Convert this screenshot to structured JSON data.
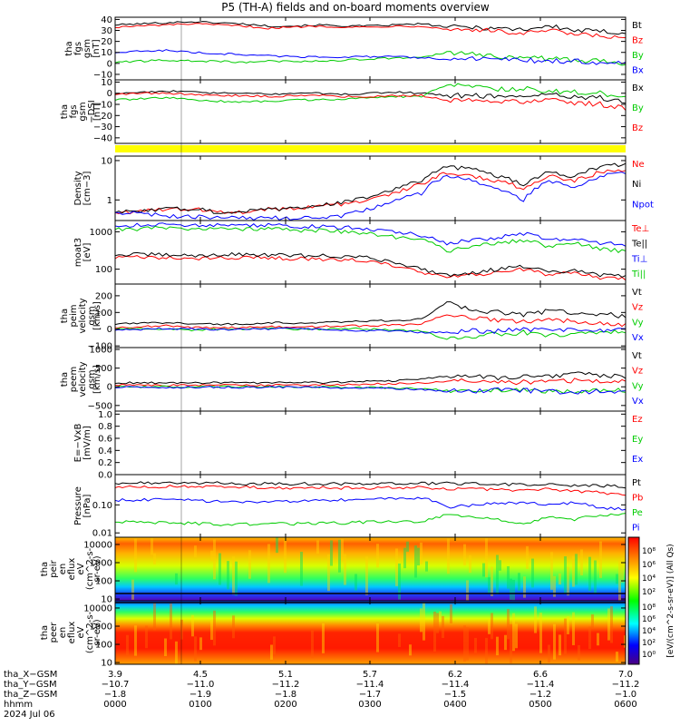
{
  "title": "P5 (TH-A) fields and on-board moments overview",
  "chart_data": [
    {
      "type": "line",
      "panel": "fgs_gsm",
      "ylabel": [
        "tha",
        "fgs",
        "gsm",
        "[nT]"
      ],
      "ylim": [
        -15,
        42
      ],
      "yticks": [
        "40",
        "30",
        "20",
        "10",
        "0",
        "−10"
      ],
      "ytick_values": [
        40,
        30,
        20,
        10,
        0,
        -10
      ],
      "series": [
        {
          "name": "Bt",
          "color": "#000000",
          "values": [
            35,
            36,
            37,
            38,
            37,
            36,
            34,
            34,
            35,
            34,
            34,
            35,
            36,
            33,
            33,
            32,
            31,
            34,
            30,
            29,
            28
          ]
        },
        {
          "name": "Bz",
          "color": "#ff0000",
          "values": [
            33,
            34,
            35,
            36,
            35,
            34,
            32,
            33,
            34,
            33,
            33,
            34,
            34,
            31,
            31,
            29,
            27,
            30,
            26,
            25,
            22
          ]
        },
        {
          "name": "By",
          "color": "#00cc00",
          "values": [
            1,
            2,
            3,
            2,
            2,
            1,
            2,
            2,
            2,
            3,
            4,
            5,
            5,
            10,
            8,
            6,
            6,
            4,
            3,
            2,
            0
          ]
        },
        {
          "name": "Bx",
          "color": "#0000ff",
          "values": [
            10,
            11,
            12,
            10,
            9,
            8,
            7,
            6,
            6,
            6,
            6,
            6,
            5,
            4,
            4,
            4,
            3,
            2,
            2,
            1,
            0
          ]
        }
      ]
    },
    {
      "type": "line",
      "panel": "fgs_gsm_detrended",
      "ylabel": [
        "tha",
        "fgs",
        "gsm",
        "−DSI",
        "[nT]"
      ],
      "ylim": [
        -45,
        12
      ],
      "yticks": [
        "10",
        "0",
        "−10",
        "−20",
        "−30",
        "−40"
      ],
      "ytick_values": [
        10,
        0,
        -10,
        -20,
        -30,
        -40
      ],
      "series": [
        {
          "name": "Bx",
          "color": "#000000",
          "values": [
            0,
            1,
            2,
            1,
            0,
            0,
            -1,
            0,
            0,
            -1,
            0,
            1,
            0,
            -2,
            -2,
            -3,
            -2,
            -1,
            -3,
            -4,
            -8
          ]
        },
        {
          "name": "By",
          "color": "#00cc00",
          "values": [
            -6,
            -5,
            -4,
            -6,
            -7,
            -8,
            -7,
            -6,
            -6,
            -5,
            -4,
            -3,
            -3,
            8,
            6,
            4,
            4,
            2,
            1,
            0,
            -4
          ]
        },
        {
          "name": "Bz",
          "color": "#ff0000",
          "values": [
            -1,
            0,
            0,
            -1,
            -2,
            -2,
            -3,
            -2,
            -2,
            -3,
            -3,
            -2,
            -2,
            -6,
            -6,
            -7,
            -8,
            -6,
            -9,
            -10,
            -14
          ]
        }
      ]
    },
    {
      "type": "line",
      "panel": "density",
      "scale": "log",
      "ylabel": [
        "Density",
        "[cm−3]"
      ],
      "ylim": [
        0.3,
        13
      ],
      "yticks": [
        "10",
        "1"
      ],
      "ytick_values": [
        10,
        1
      ],
      "series": [
        {
          "name": "Ne",
          "color": "#ff0000",
          "values": [
            0.5,
            0.5,
            0.6,
            0.6,
            0.5,
            0.5,
            0.6,
            0.6,
            0.7,
            0.8,
            1.0,
            1.5,
            2.5,
            5.0,
            4.0,
            3.0,
            2.0,
            4.0,
            3.0,
            5.0,
            6.0
          ]
        },
        {
          "name": "Ni",
          "color": "#000000",
          "values": [
            0.5,
            0.5,
            0.6,
            0.6,
            0.5,
            0.5,
            0.6,
            0.6,
            0.7,
            0.9,
            1.2,
            2.0,
            3.0,
            7.0,
            6.0,
            4.0,
            2.5,
            5.0,
            4.0,
            7.0,
            8.0
          ]
        },
        {
          "name": "Npot",
          "color": "#0000ff",
          "values": [
            0.5,
            0.45,
            0.4,
            0.38,
            0.36,
            0.35,
            0.35,
            0.35,
            0.36,
            0.4,
            0.6,
            1.0,
            1.5,
            4.0,
            3.0,
            2.0,
            1.0,
            3.0,
            2.0,
            4.0,
            5.0
          ]
        }
      ]
    },
    {
      "type": "line",
      "panel": "temperature",
      "scale": "log",
      "ylabel": [
        "moat3",
        "[eV]"
      ],
      "ylim": [
        40,
        2000
      ],
      "yticks": [
        "1000",
        "100"
      ],
      "ytick_values": [
        1000,
        100
      ],
      "series": [
        {
          "name": "Te⊥",
          "color": "#ff0000",
          "values": [
            200,
            210,
            200,
            190,
            200,
            210,
            200,
            190,
            190,
            180,
            160,
            120,
            80,
            60,
            70,
            80,
            100,
            70,
            80,
            60,
            55
          ]
        },
        {
          "name": "Te||",
          "color": "#000000",
          "values": [
            240,
            250,
            240,
            230,
            240,
            250,
            240,
            230,
            230,
            220,
            200,
            150,
            100,
            70,
            80,
            100,
            120,
            80,
            90,
            70,
            65
          ]
        },
        {
          "name": "Ti⊥",
          "color": "#0000ff",
          "values": [
            1500,
            1500,
            1600,
            1500,
            1500,
            1500,
            1500,
            1400,
            1400,
            1300,
            1200,
            1000,
            800,
            500,
            600,
            700,
            900,
            600,
            700,
            500,
            450
          ]
        },
        {
          "name": "Ti||",
          "color": "#00cc00",
          "values": [
            1200,
            1200,
            1300,
            1200,
            1200,
            1200,
            1200,
            1100,
            1100,
            1000,
            900,
            700,
            600,
            300,
            400,
            500,
            600,
            400,
            500,
            350,
            300
          ]
        }
      ]
    },
    {
      "type": "line",
      "panel": "peim_velocity",
      "ylabel": [
        "tha",
        "peim",
        "velocity",
        "gsm",
        "[km/s]"
      ],
      "ylim": [
        -110,
        270
      ],
      "yticks": [
        "200",
        "100",
        "0",
        "−100"
      ],
      "ytick_values": [
        200,
        100,
        0,
        -100
      ],
      "series": [
        {
          "name": "Vt",
          "color": "#000000",
          "values": [
            30,
            35,
            40,
            35,
            30,
            30,
            40,
            35,
            40,
            45,
            50,
            50,
            60,
            160,
            120,
            100,
            90,
            110,
            100,
            90,
            80
          ]
        },
        {
          "name": "Vz",
          "color": "#ff0000",
          "values": [
            10,
            15,
            20,
            10,
            10,
            10,
            15,
            10,
            15,
            20,
            20,
            25,
            30,
            90,
            70,
            50,
            40,
            60,
            50,
            40,
            30
          ]
        },
        {
          "name": "Vy",
          "color": "#00cc00",
          "values": [
            0,
            5,
            0,
            -5,
            0,
            0,
            5,
            0,
            0,
            5,
            0,
            -5,
            -10,
            -60,
            -40,
            -30,
            -20,
            -40,
            -30,
            -20,
            -10
          ]
        },
        {
          "name": "Vx",
          "color": "#0000ff",
          "values": [
            -5,
            0,
            5,
            0,
            -5,
            0,
            0,
            5,
            0,
            -5,
            -10,
            -10,
            -20,
            -20,
            -10,
            -10,
            -5,
            -10,
            -10,
            -5,
            0
          ]
        }
      ]
    },
    {
      "type": "line",
      "panel": "peem_velocity",
      "ylabel": [
        "tha",
        "peem",
        "velocity",
        "gsm",
        "[km/s]"
      ],
      "ylim": [
        -650,
        1050
      ],
      "yticks": [
        "1000",
        "500",
        "0",
        "−500"
      ],
      "ytick_values": [
        1000,
        500,
        0,
        -500
      ],
      "series": [
        {
          "name": "Vt",
          "color": "#000000",
          "values": [
            100,
            110,
            100,
            100,
            110,
            100,
            100,
            120,
            110,
            130,
            150,
            160,
            200,
            300,
            280,
            250,
            260,
            300,
            350,
            300,
            280
          ]
        },
        {
          "name": "Vz",
          "color": "#ff0000",
          "values": [
            50,
            50,
            40,
            40,
            50,
            40,
            40,
            50,
            50,
            60,
            70,
            80,
            100,
            150,
            140,
            120,
            130,
            150,
            170,
            150,
            140
          ]
        },
        {
          "name": "Vy",
          "color": "#00cc00",
          "values": [
            0,
            0,
            10,
            0,
            0,
            0,
            10,
            0,
            0,
            -10,
            -20,
            -30,
            -50,
            -100,
            -90,
            -80,
            -90,
            -100,
            -120,
            -100,
            -90
          ]
        },
        {
          "name": "Vx",
          "color": "#0000ff",
          "values": [
            -20,
            -10,
            -20,
            -10,
            -10,
            -20,
            -10,
            -10,
            -20,
            -30,
            -40,
            -50,
            -80,
            -120,
            -100,
            -90,
            -100,
            -120,
            -150,
            -120,
            -110
          ]
        }
      ]
    },
    {
      "type": "line",
      "panel": "efield",
      "ylabel": [
        "E=−VxB",
        "[mV/m]"
      ],
      "ylim": [
        0,
        1.05
      ],
      "yticks": [
        "1.0",
        "0.8",
        "0.6",
        "0.4",
        "0.2",
        "0.0"
      ],
      "ytick_values": [
        1.0,
        0.8,
        0.6,
        0.4,
        0.2,
        0.0
      ],
      "series": [
        {
          "name": "Ez",
          "color": "#ff0000",
          "values": []
        },
        {
          "name": "Ey",
          "color": "#00cc00",
          "values": []
        },
        {
          "name": "Ex",
          "color": "#0000ff",
          "values": []
        }
      ]
    },
    {
      "type": "line",
      "panel": "pressure",
      "scale": "log",
      "ylabel": [
        "Pressure",
        "[nPa]"
      ],
      "ylim": [
        0.007,
        1.2
      ],
      "yticks": [
        "0.10",
        "0.01"
      ],
      "ytick_values": [
        0.1,
        0.01
      ],
      "series": [
        {
          "name": "Pt",
          "color": "#000000",
          "values": [
            0.6,
            0.6,
            0.62,
            0.62,
            0.6,
            0.58,
            0.57,
            0.57,
            0.58,
            0.57,
            0.56,
            0.57,
            0.58,
            0.6,
            0.57,
            0.55,
            0.52,
            0.55,
            0.5,
            0.48,
            0.45
          ]
        },
        {
          "name": "Pb",
          "color": "#ff0000",
          "values": [
            0.42,
            0.43,
            0.45,
            0.46,
            0.44,
            0.43,
            0.4,
            0.4,
            0.42,
            0.4,
            0.4,
            0.42,
            0.43,
            0.37,
            0.37,
            0.35,
            0.32,
            0.37,
            0.3,
            0.28,
            0.22
          ]
        },
        {
          "name": "Pe",
          "color": "#00cc00",
          "values": [
            0.025,
            0.024,
            0.023,
            0.022,
            0.02,
            0.02,
            0.022,
            0.021,
            0.022,
            0.023,
            0.025,
            0.025,
            0.025,
            0.045,
            0.035,
            0.03,
            0.02,
            0.035,
            0.03,
            0.045,
            0.045
          ]
        },
        {
          "name": "Pi",
          "color": "#0000ff",
          "values": [
            0.15,
            0.15,
            0.16,
            0.15,
            0.13,
            0.12,
            0.13,
            0.13,
            0.14,
            0.15,
            0.16,
            0.17,
            0.18,
            0.08,
            0.1,
            0.12,
            0.12,
            0.1,
            0.12,
            0.08,
            0.07
          ]
        }
      ]
    },
    {
      "type": "heatmap",
      "panel": "peir_en_eflux",
      "scale": "log",
      "ylabel": [
        "tha",
        "peir",
        "en",
        "eflux",
        "eV",
        "(cm^2-s-",
        "sr-eV)"
      ],
      "ylim": [
        8,
        25000
      ],
      "yticks": [
        "10000",
        "1000",
        "100",
        "10"
      ],
      "ytick_values": [
        10000,
        1000,
        100,
        10
      ]
    },
    {
      "type": "heatmap",
      "panel": "peer_en_eflux",
      "scale": "log",
      "ylabel": [
        "tha",
        "peer",
        "en",
        "eflux",
        "eV",
        "(cm^2-s-",
        "sr-eV)"
      ],
      "ylim": [
        8,
        25000
      ],
      "yticks": [
        "10000",
        "1000",
        "100",
        "10"
      ],
      "ytick_values": [
        10000,
        1000,
        100,
        10
      ]
    }
  ],
  "colorbar": {
    "label": "[eV/(cm^2-s-sr-eV)] (All Qs)",
    "ticks_top": [
      "10⁸",
      "10⁶",
      "10⁴",
      "10²"
    ],
    "ticks_bottom": [
      "10⁸",
      "10⁶",
      "10⁴",
      "10²",
      "10⁰"
    ]
  },
  "footer": {
    "rows": [
      {
        "label": "tha_X−GSM",
        "values": [
          "3.9",
          "4.5",
          "5.1",
          "5.7",
          "6.2",
          "6.6",
          "7.0"
        ]
      },
      {
        "label": "tha_Y−GSM",
        "values": [
          "−10.7",
          "−11.0",
          "−11.2",
          "−11.4",
          "−11.4",
          "−11.4",
          "−11.2"
        ]
      },
      {
        "label": "tha_Z−GSM",
        "values": [
          "−1.8",
          "−1.9",
          "−1.8",
          "−1.7",
          "−1.5",
          "−1.2",
          "−1.0"
        ]
      },
      {
        "label": "hhmm",
        "values": [
          "0000",
          "0100",
          "0200",
          "0300",
          "0400",
          "0500",
          "0600"
        ]
      }
    ],
    "date": "2024 Jul 06"
  }
}
